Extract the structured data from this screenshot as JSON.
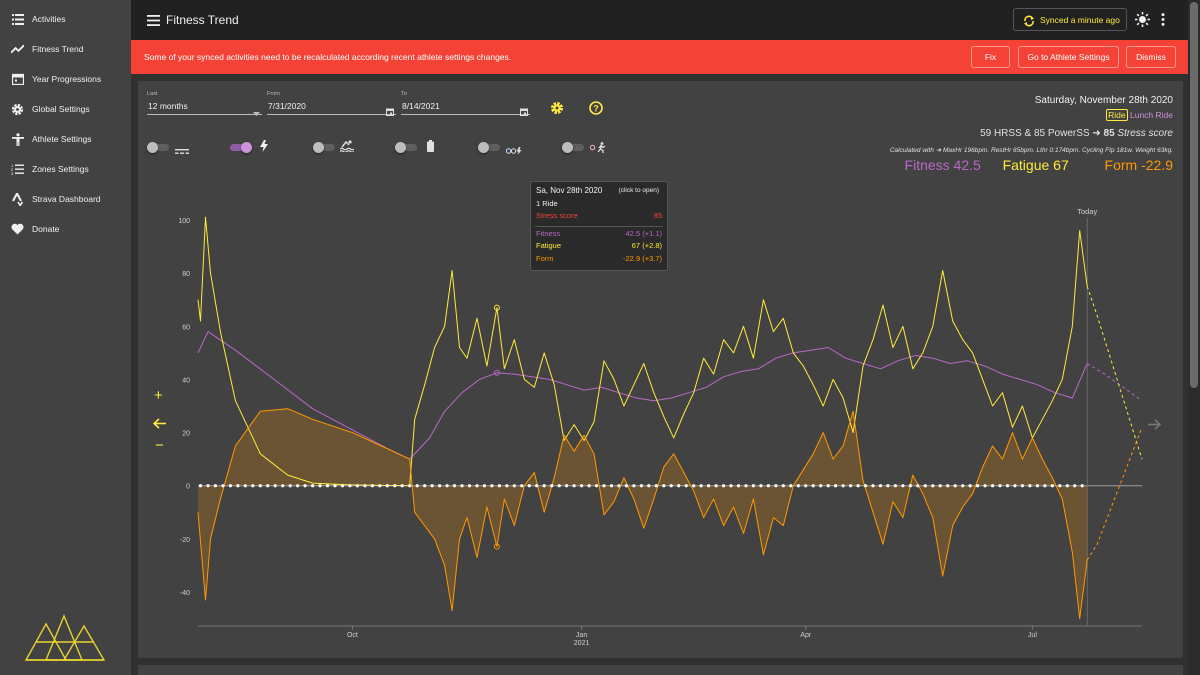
{
  "sidebar": {
    "items": [
      {
        "label": "Activities",
        "icon": "list-icon"
      },
      {
        "label": "Fitness Trend",
        "icon": "trend-icon"
      },
      {
        "label": "Year Progressions",
        "icon": "calendar-icon"
      },
      {
        "label": "Global Settings",
        "icon": "gear-icon"
      },
      {
        "label": "Athlete Settings",
        "icon": "person-icon"
      },
      {
        "label": "Zones Settings",
        "icon": "zones-icon"
      },
      {
        "label": "Strava Dashboard",
        "icon": "strava-icon"
      },
      {
        "label": "Donate",
        "icon": "heart-icon"
      }
    ]
  },
  "header": {
    "title": "Fitness Trend",
    "sync_label": "Synced a minute ago"
  },
  "banner": {
    "message": "Some of your synced activities need to be recalculated according recent athlete settings changes.",
    "fix_label": "Fix",
    "athlete_settings_label": "Go to Athlete Settings",
    "dismiss_label": "Dismiss"
  },
  "controls": {
    "last_label": "Last",
    "last_value": "12 months",
    "from_label": "From",
    "from_value": "7/31/2020",
    "to_label": "To",
    "to_value": "8/14/2021",
    "toggles": [
      {
        "name": "power-meter",
        "on": false
      },
      {
        "name": "estimated-power",
        "on": true
      },
      {
        "name": "swim",
        "on": false
      },
      {
        "name": "heart-rate",
        "on": false
      },
      {
        "name": "cycling-stress",
        "on": false
      },
      {
        "name": "running-stress",
        "on": false
      }
    ]
  },
  "day_info": {
    "date": "Saturday, November 28th 2020",
    "activity_type": "Ride",
    "activity_name": "Lunch Ride",
    "stress_line_a": "59 HRSS & 85 PowerSS",
    "stress_value": "85",
    "stress_word": "Stress score",
    "calculated_with": "Calculated with",
    "calc_details": "MaxHr 196bpm. RestHr 65bpm. Lthr 0:174bpm. Cycling Ftp 181w. Weight 63kg.",
    "fitness": "Fitness 42.5",
    "fatigue": "Fatigue 67",
    "form": "Form -22.9",
    "colors": {
      "fitness": "#ba68c8",
      "fatigue": "#ffeb3b",
      "form": "#ff9800"
    }
  },
  "tooltip": {
    "date": "Sa, Nov 28th 2020",
    "hint": "(click to open)",
    "rides": "1 Ride",
    "stress_label": "Stress score",
    "stress_value": "85",
    "fitness_label": "Fitness",
    "fitness_value": "42.5 (+1.1)",
    "fatigue_label": "Fatigue",
    "fatigue_value": "67 (+2.8)",
    "form_label": "Form",
    "form_value": "-22.9 (+3.7)"
  },
  "zoom_controls": {
    "plus": "+",
    "minus": "−"
  },
  "chart_data": {
    "type": "line",
    "x_start": "2020-07-31",
    "x_end": "2021-08-14",
    "today": "2021-07-23",
    "today_label": "Today",
    "ylim": [
      -50,
      105
    ],
    "yticks": [
      100,
      80,
      60,
      40,
      20,
      0,
      -20,
      -40
    ],
    "xticks": [
      {
        "label": "Oct",
        "sublabel": "",
        "date": "2020-10-01"
      },
      {
        "label": "Jan",
        "sublabel": "2021",
        "date": "2021-01-01"
      },
      {
        "label": "Apr",
        "sublabel": "",
        "date": "2021-04-01"
      },
      {
        "label": "Jul",
        "sublabel": "",
        "date": "2021-07-01"
      }
    ],
    "series": [
      {
        "name": "Fitness",
        "color": "#ba68c8",
        "points": [
          [
            "2020-07-31",
            50
          ],
          [
            "2020-08-04",
            58
          ],
          [
            "2020-08-15",
            51
          ],
          [
            "2020-09-01",
            39
          ],
          [
            "2020-09-15",
            29
          ],
          [
            "2020-10-01",
            21
          ],
          [
            "2020-10-15",
            14
          ],
          [
            "2020-10-24",
            10
          ],
          [
            "2020-11-01",
            18
          ],
          [
            "2020-11-07",
            28
          ],
          [
            "2020-11-14",
            35
          ],
          [
            "2020-11-21",
            40
          ],
          [
            "2020-11-28",
            42.5
          ],
          [
            "2020-12-05",
            42
          ],
          [
            "2020-12-12",
            41
          ],
          [
            "2020-12-19",
            40
          ],
          [
            "2020-12-26",
            38
          ],
          [
            "2021-01-02",
            36
          ],
          [
            "2021-01-09",
            37
          ],
          [
            "2021-01-16",
            35
          ],
          [
            "2021-01-23",
            33
          ],
          [
            "2021-01-30",
            32
          ],
          [
            "2021-02-06",
            33
          ],
          [
            "2021-02-13",
            35
          ],
          [
            "2021-02-20",
            37
          ],
          [
            "2021-02-27",
            41
          ],
          [
            "2021-03-06",
            43
          ],
          [
            "2021-03-13",
            44
          ],
          [
            "2021-03-20",
            48
          ],
          [
            "2021-03-27",
            50
          ],
          [
            "2021-04-03",
            51
          ],
          [
            "2021-04-10",
            52
          ],
          [
            "2021-04-17",
            48
          ],
          [
            "2021-04-24",
            46
          ],
          [
            "2021-05-01",
            44
          ],
          [
            "2021-05-08",
            47
          ],
          [
            "2021-05-15",
            49
          ],
          [
            "2021-05-22",
            48
          ],
          [
            "2021-05-29",
            46
          ],
          [
            "2021-06-05",
            47
          ],
          [
            "2021-06-12",
            45
          ],
          [
            "2021-06-19",
            42
          ],
          [
            "2021-06-26",
            40
          ],
          [
            "2021-07-03",
            38
          ],
          [
            "2021-07-10",
            35
          ],
          [
            "2021-07-17",
            33
          ],
          [
            "2021-07-23",
            46
          ],
          [
            "2021-07-30",
            42
          ],
          [
            "2021-08-14",
            32
          ]
        ]
      },
      {
        "name": "Fatigue",
        "color": "#ffeb3b",
        "points": [
          [
            "2020-07-31",
            70
          ],
          [
            "2020-08-01",
            62
          ],
          [
            "2020-08-03",
            101
          ],
          [
            "2020-08-05",
            80
          ],
          [
            "2020-08-09",
            58
          ],
          [
            "2020-08-15",
            32
          ],
          [
            "2020-08-25",
            12
          ],
          [
            "2020-09-05",
            4
          ],
          [
            "2020-09-15",
            1
          ],
          [
            "2020-09-30",
            0.3
          ],
          [
            "2020-10-24",
            0
          ],
          [
            "2020-10-26",
            25
          ],
          [
            "2020-10-30",
            38
          ],
          [
            "2020-11-03",
            52
          ],
          [
            "2020-11-07",
            60
          ],
          [
            "2020-11-10",
            81
          ],
          [
            "2020-11-13",
            52
          ],
          [
            "2020-11-16",
            48
          ],
          [
            "2020-11-20",
            63
          ],
          [
            "2020-11-24",
            45
          ],
          [
            "2020-11-28",
            67
          ],
          [
            "2020-12-01",
            44
          ],
          [
            "2020-12-05",
            55
          ],
          [
            "2020-12-09",
            40
          ],
          [
            "2020-12-13",
            37
          ],
          [
            "2020-12-17",
            50
          ],
          [
            "2020-12-21",
            38
          ],
          [
            "2020-12-25",
            17
          ],
          [
            "2020-12-29",
            23
          ],
          [
            "2021-01-02",
            17
          ],
          [
            "2021-01-06",
            24
          ],
          [
            "2021-01-10",
            47
          ],
          [
            "2021-01-14",
            40
          ],
          [
            "2021-01-18",
            30
          ],
          [
            "2021-01-22",
            38
          ],
          [
            "2021-01-26",
            46
          ],
          [
            "2021-01-30",
            35
          ],
          [
            "2021-02-03",
            26
          ],
          [
            "2021-02-07",
            18
          ],
          [
            "2021-02-11",
            27
          ],
          [
            "2021-02-15",
            35
          ],
          [
            "2021-02-19",
            48
          ],
          [
            "2021-02-23",
            42
          ],
          [
            "2021-02-27",
            55
          ],
          [
            "2021-03-03",
            50
          ],
          [
            "2021-03-07",
            60
          ],
          [
            "2021-03-11",
            48
          ],
          [
            "2021-03-15",
            70
          ],
          [
            "2021-03-19",
            58
          ],
          [
            "2021-03-23",
            63
          ],
          [
            "2021-03-27",
            50
          ],
          [
            "2021-03-31",
            45
          ],
          [
            "2021-04-04",
            38
          ],
          [
            "2021-04-08",
            30
          ],
          [
            "2021-04-12",
            40
          ],
          [
            "2021-04-16",
            33
          ],
          [
            "2021-04-20",
            20
          ],
          [
            "2021-04-24",
            45
          ],
          [
            "2021-04-28",
            55
          ],
          [
            "2021-05-02",
            68
          ],
          [
            "2021-05-06",
            52
          ],
          [
            "2021-05-10",
            60
          ],
          [
            "2021-05-14",
            44
          ],
          [
            "2021-05-18",
            50
          ],
          [
            "2021-05-22",
            60
          ],
          [
            "2021-05-26",
            81
          ],
          [
            "2021-05-30",
            62
          ],
          [
            "2021-06-03",
            55
          ],
          [
            "2021-06-07",
            50
          ],
          [
            "2021-06-11",
            40
          ],
          [
            "2021-06-15",
            30
          ],
          [
            "2021-06-19",
            35
          ],
          [
            "2021-06-23",
            22
          ],
          [
            "2021-06-27",
            30
          ],
          [
            "2021-07-01",
            18
          ],
          [
            "2021-07-05",
            25
          ],
          [
            "2021-07-09",
            32
          ],
          [
            "2021-07-13",
            40
          ],
          [
            "2021-07-17",
            60
          ],
          [
            "2021-07-20",
            96
          ],
          [
            "2021-07-23",
            75
          ],
          [
            "2021-07-27",
            64
          ],
          [
            "2021-08-14",
            10
          ]
        ]
      },
      {
        "name": "Form",
        "color": "#ff9800",
        "points": [
          [
            "2020-07-31",
            -10
          ],
          [
            "2020-08-03",
            -43
          ],
          [
            "2020-08-05",
            -20
          ],
          [
            "2020-08-09",
            -5
          ],
          [
            "2020-08-15",
            15
          ],
          [
            "2020-08-25",
            28
          ],
          [
            "2020-09-05",
            29
          ],
          [
            "2020-09-15",
            25
          ],
          [
            "2020-10-01",
            20
          ],
          [
            "2020-10-24",
            10
          ],
          [
            "2020-10-26",
            -10
          ],
          [
            "2020-11-03",
            -20
          ],
          [
            "2020-11-07",
            -30
          ],
          [
            "2020-11-10",
            -47
          ],
          [
            "2020-11-13",
            -20
          ],
          [
            "2020-11-16",
            -12
          ],
          [
            "2020-11-20",
            -27
          ],
          [
            "2020-11-24",
            -8
          ],
          [
            "2020-11-28",
            -22.9
          ],
          [
            "2020-12-01",
            -5
          ],
          [
            "2020-12-05",
            -15
          ],
          [
            "2020-12-09",
            0
          ],
          [
            "2020-12-13",
            5
          ],
          [
            "2020-12-17",
            -10
          ],
          [
            "2020-12-21",
            3
          ],
          [
            "2020-12-25",
            19
          ],
          [
            "2020-12-29",
            13
          ],
          [
            "2021-01-02",
            19
          ],
          [
            "2021-01-06",
            12
          ],
          [
            "2021-01-10",
            -11
          ],
          [
            "2021-01-14",
            -6
          ],
          [
            "2021-01-18",
            3
          ],
          [
            "2021-01-22",
            -5
          ],
          [
            "2021-01-26",
            -16
          ],
          [
            "2021-01-30",
            -5
          ],
          [
            "2021-02-03",
            7
          ],
          [
            "2021-02-07",
            12
          ],
          [
            "2021-02-11",
            5
          ],
          [
            "2021-02-15",
            -2
          ],
          [
            "2021-02-19",
            -12
          ],
          [
            "2021-02-23",
            -5
          ],
          [
            "2021-02-27",
            -15
          ],
          [
            "2021-03-03",
            -8
          ],
          [
            "2021-03-07",
            -18
          ],
          [
            "2021-03-11",
            -5
          ],
          [
            "2021-03-15",
            -26
          ],
          [
            "2021-03-19",
            -12
          ],
          [
            "2021-03-23",
            -15
          ],
          [
            "2021-03-27",
            0
          ],
          [
            "2021-03-31",
            6
          ],
          [
            "2021-04-04",
            12
          ],
          [
            "2021-04-08",
            20
          ],
          [
            "2021-04-12",
            10
          ],
          [
            "2021-04-16",
            15
          ],
          [
            "2021-04-20",
            28
          ],
          [
            "2021-04-24",
            2
          ],
          [
            "2021-04-28",
            -10
          ],
          [
            "2021-05-02",
            -22
          ],
          [
            "2021-05-06",
            -6
          ],
          [
            "2021-05-10",
            -12
          ],
          [
            "2021-05-14",
            4
          ],
          [
            "2021-05-18",
            -3
          ],
          [
            "2021-05-22",
            -12
          ],
          [
            "2021-05-26",
            -34
          ],
          [
            "2021-05-30",
            -15
          ],
          [
            "2021-06-03",
            -8
          ],
          [
            "2021-06-07",
            -3
          ],
          [
            "2021-06-11",
            7
          ],
          [
            "2021-06-15",
            15
          ],
          [
            "2021-06-19",
            10
          ],
          [
            "2021-06-23",
            20
          ],
          [
            "2021-06-27",
            10
          ],
          [
            "2021-07-01",
            18
          ],
          [
            "2021-07-05",
            10
          ],
          [
            "2021-07-09",
            3
          ],
          [
            "2021-07-13",
            -5
          ],
          [
            "2021-07-17",
            -25
          ],
          [
            "2021-07-20",
            -50
          ],
          [
            "2021-07-23",
            -28
          ],
          [
            "2021-07-27",
            -22
          ],
          [
            "2021-08-14",
            22
          ]
        ]
      }
    ]
  }
}
